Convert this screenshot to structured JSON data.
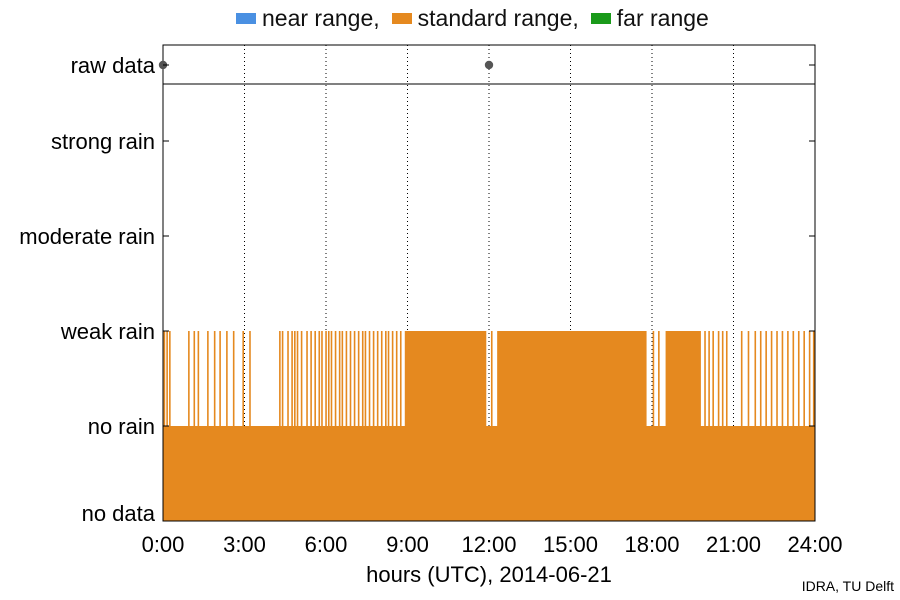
{
  "chart_data": {
    "type": "area",
    "xlabel": "hours (UTC), 2014-06-21",
    "x_ticks": [
      "0:00",
      "3:00",
      "6:00",
      "9:00",
      "12:00",
      "15:00",
      "18:00",
      "21:00",
      "24:00"
    ],
    "xlim": [
      0,
      24
    ],
    "y_categories": [
      "no data",
      "no rain",
      "weak rain",
      "moderate rain",
      "strong rain",
      "raw data"
    ],
    "grid": "vertical dotted",
    "legend_position": "top",
    "legend": [
      {
        "label": "near range,",
        "color": "#4a90e2"
      },
      {
        "label": "standard range,",
        "color": "#e5891f"
      },
      {
        "label": "far range",
        "color": "#1a9a1a"
      }
    ],
    "series": [
      {
        "name": "standard range",
        "color": "#e5891f",
        "baseline_level": "no rain",
        "peak_level": "weak rain",
        "weak_rain_solid_intervals_hours": [
          [
            8.9,
            11.9
          ],
          [
            12.3,
            17.8
          ],
          [
            18.5,
            19.8
          ]
        ],
        "weak_rain_spike_times_hours": [
          0.05,
          0.15,
          0.25,
          0.95,
          1.15,
          1.3,
          1.65,
          1.9,
          2.1,
          2.35,
          2.6,
          2.95,
          3.2,
          4.3,
          4.4,
          4.6,
          4.75,
          4.85,
          4.95,
          5.1,
          5.3,
          5.45,
          5.6,
          5.75,
          5.85,
          6.0,
          6.1,
          6.2,
          6.35,
          6.5,
          6.6,
          6.75,
          6.9,
          7.05,
          7.2,
          7.35,
          7.45,
          7.6,
          7.75,
          7.9,
          8.05,
          8.2,
          8.3,
          8.45,
          8.6,
          8.75,
          12.1,
          18.05,
          18.25,
          19.95,
          20.1,
          20.25,
          20.45,
          20.6,
          20.75,
          21.3,
          21.55,
          21.8,
          22.0,
          22.2,
          22.4,
          22.6,
          22.8,
          23.0,
          23.2,
          23.4,
          23.6,
          23.8,
          23.95
        ]
      }
    ],
    "raw_data_markers_hours": [
      0,
      12
    ],
    "raw_data_marker_color": "#555555"
  },
  "credit": "IDRA, TU Delft"
}
